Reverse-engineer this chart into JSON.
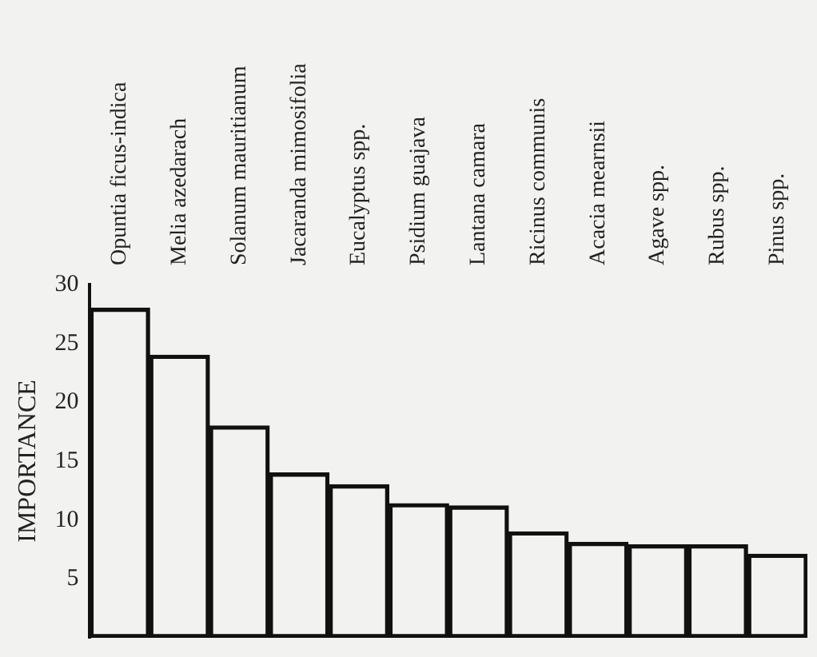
{
  "chart_data": {
    "type": "bar",
    "ylabel": "IMPORTANCE",
    "categories": [
      "Opuntia ficus-indica",
      "Melia azedarach",
      "Solanum mauritianum",
      "Jacaranda mimosifolia",
      "Eucalyptus spp.",
      "Psidium guajava",
      "Lantana camara",
      "Ricinus communis",
      "Acacia mearnsii",
      "Agave spp.",
      "Rubus spp.",
      "Pinus spp."
    ],
    "values": [
      28,
      24,
      18,
      14,
      13,
      11.4,
      11.2,
      9,
      8.1,
      7.9,
      7.9,
      7.1
    ],
    "color": "#111111",
    "ylim": [
      0,
      30
    ],
    "yticks": [
      5,
      10,
      15,
      20,
      25,
      30
    ],
    "grid": false,
    "legend": false
  }
}
